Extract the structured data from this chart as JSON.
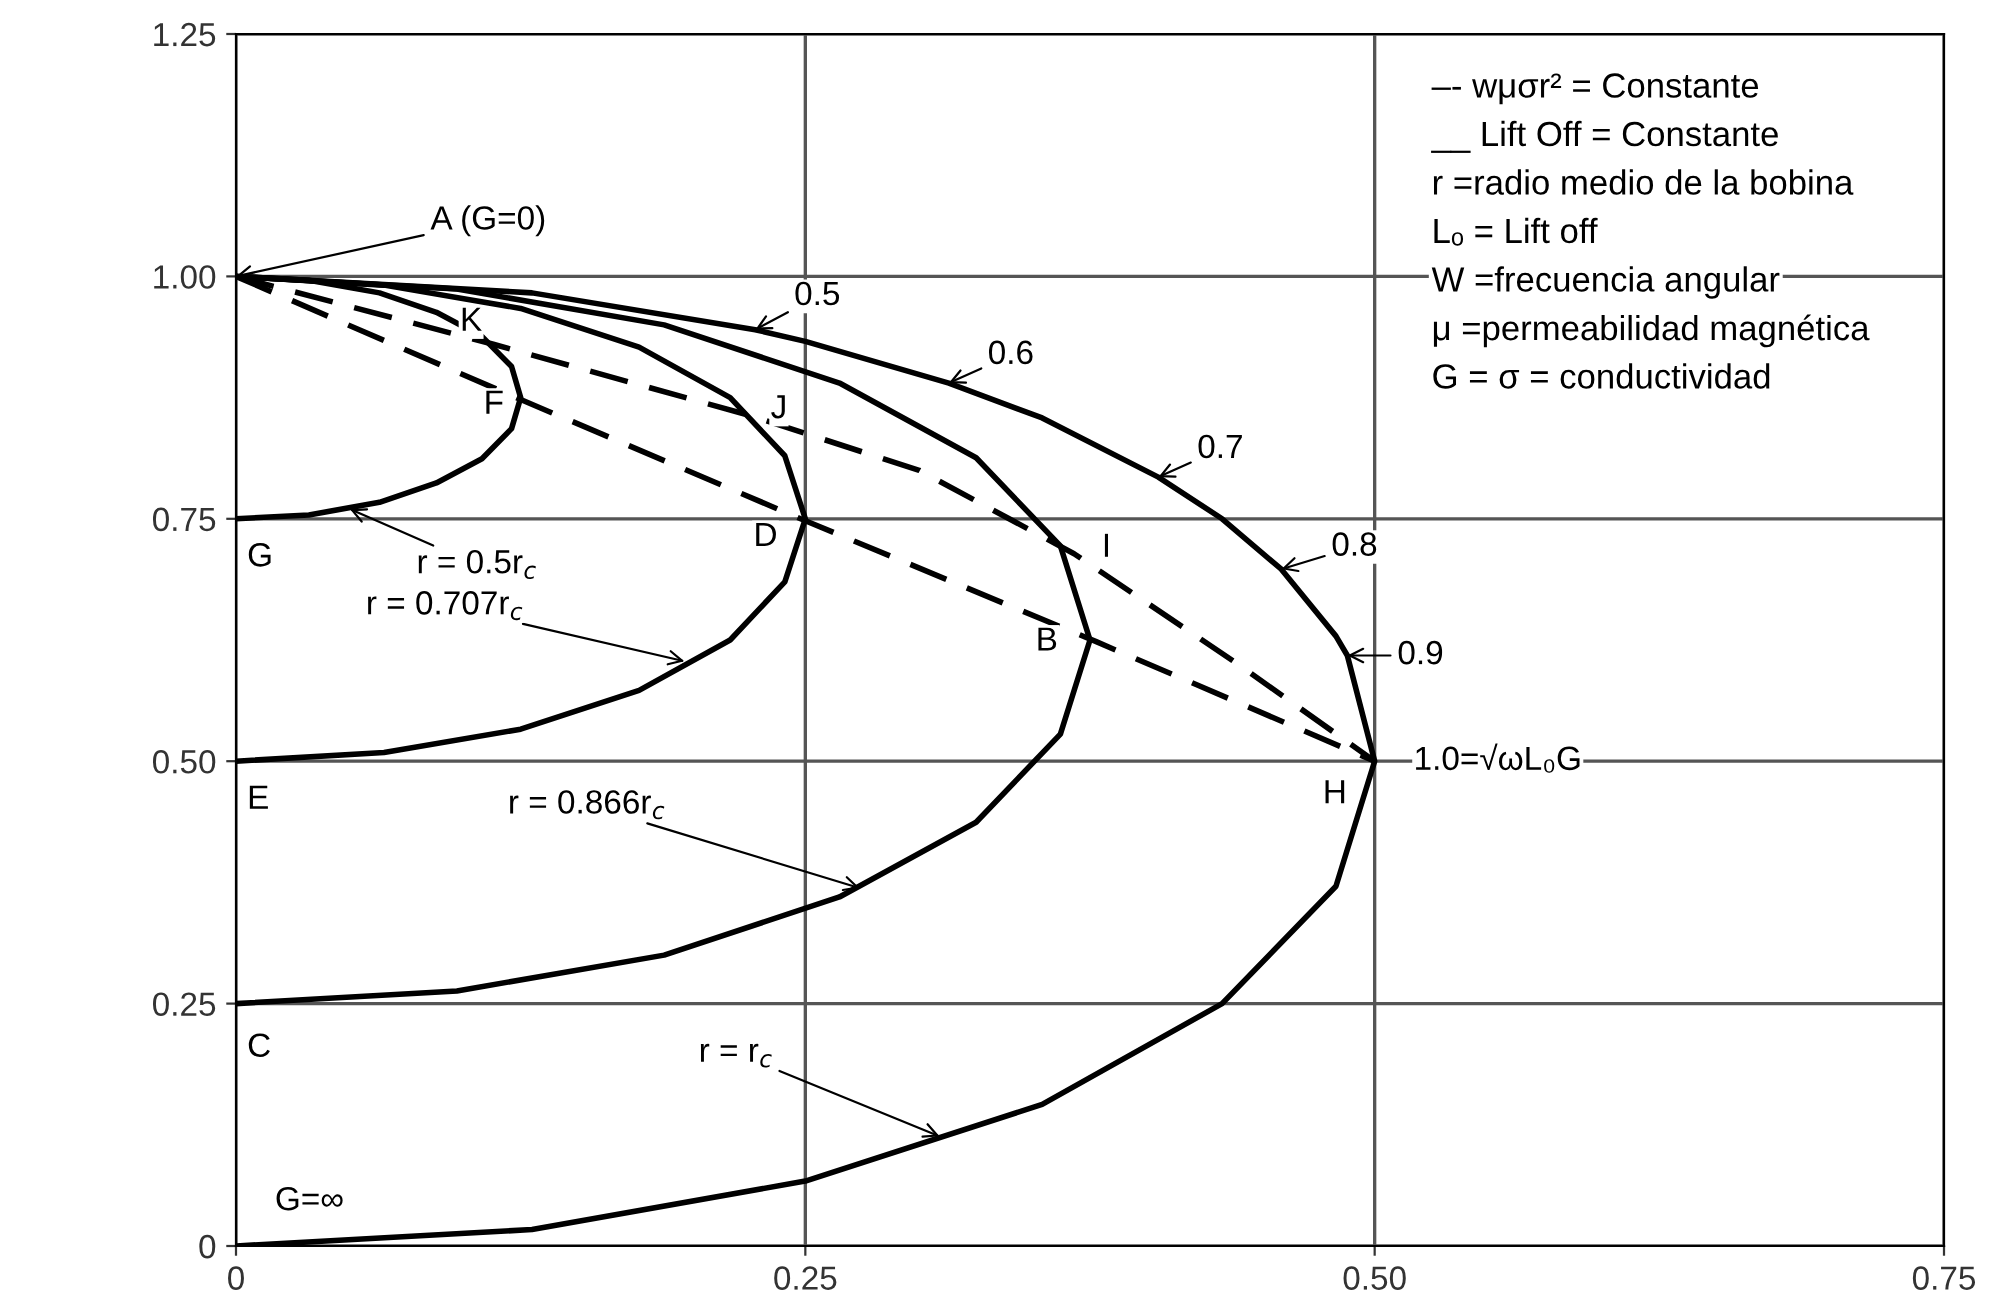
{
  "chart_data": {
    "type": "line",
    "xlim": [
      0,
      0.75
    ],
    "ylim": [
      0,
      1.25
    ],
    "xticks": [
      0,
      0.25,
      {
        "value": 0.5,
        "label": "0.50"
      },
      0.75
    ],
    "yticks": [
      0,
      0.25,
      {
        "value": 0.5,
        "label": "0.50"
      },
      0.75,
      {
        "value": 1,
        "label": "1.00"
      },
      1.25
    ],
    "grid": true,
    "marker": "none",
    "series": [
      {
        "color": "#000000",
        "line_style": "solid",
        "x": [
          0,
          0.032,
          0.063,
          0.088,
          0.108,
          0.121,
          0.125,
          0.121,
          0.108,
          0.088,
          0.063,
          0.032,
          0
        ],
        "values": [
          1,
          0.996,
          0.983,
          0.963,
          0.938,
          0.907,
          0.875,
          0.843,
          0.812,
          0.787,
          0.767,
          0.754,
          0.75
        ]
      },
      {
        "color": "#000000",
        "line_style": "solid",
        "x": [
          0,
          0.065,
          0.125,
          0.177,
          0.217,
          0.241,
          0.25,
          0.241,
          0.217,
          0.177,
          0.125,
          0.065,
          0
        ],
        "values": [
          1,
          0.991,
          0.967,
          0.927,
          0.875,
          0.815,
          0.75,
          0.685,
          0.625,
          0.573,
          0.533,
          0.509,
          0.5
        ]
      },
      {
        "color": "#000000",
        "line_style": "solid",
        "x": [
          0,
          0.097,
          0.188,
          0.265,
          0.325,
          0.362,
          0.375,
          0.362,
          0.325,
          0.265,
          0.188,
          0.097,
          0
        ],
        "values": [
          1,
          0.987,
          0.95,
          0.89,
          0.813,
          0.722,
          0.625,
          0.528,
          0.437,
          0.36,
          0.3,
          0.263,
          0.25
        ]
      },
      {
        "color": "#000000",
        "line_style": "solid",
        "x": [
          0,
          0.13,
          0.228,
          0.25,
          0.313,
          0.354,
          0.405,
          0.433,
          0.459,
          0.483,
          0.488,
          0.5,
          0.483,
          0.433,
          0.354,
          0.25,
          0.13,
          0
        ],
        "values": [
          1,
          0.983,
          0.945,
          0.933,
          0.89,
          0.854,
          0.793,
          0.75,
          0.698,
          0.629,
          0.609,
          0.5,
          0.371,
          0.25,
          0.146,
          0.067,
          0.017,
          0
        ]
      },
      {
        "color": "#000000",
        "line_style": "dashed",
        "x": [
          0,
          0.125,
          0.25,
          0.378,
          0.5
        ],
        "values": [
          1,
          0.873,
          0.748,
          0.623,
          0.5
        ]
      },
      {
        "color": "#000000",
        "line_style": "dashed",
        "x": [
          0,
          0.113,
          0.225,
          0.3,
          0.368,
          0.44,
          0.5
        ],
        "values": [
          1,
          0.93,
          0.857,
          0.8,
          0.714,
          0.6,
          0.5
        ]
      }
    ],
    "annotations": [
      {
        "text": "A (G=0)",
        "x": 0,
        "y": 1
      },
      {
        "text": "K",
        "x": 0.113,
        "y": 0.93
      },
      {
        "text": "F",
        "x": 0.125,
        "y": 0.873
      },
      {
        "text": "J",
        "x": 0.225,
        "y": 0.857
      },
      {
        "text": "D",
        "x": 0.25,
        "y": 0.748
      },
      {
        "text": "G",
        "x": 0,
        "y": 0.75
      },
      {
        "text": "E",
        "x": 0,
        "y": 0.5
      },
      {
        "text": "C",
        "x": 0,
        "y": 0.25
      },
      {
        "text": "I",
        "x": 0.368,
        "y": 0.714
      },
      {
        "text": "B",
        "x": 0.378,
        "y": 0.623
      },
      {
        "text": "H",
        "x": 0.5,
        "y": 0.5
      },
      {
        "text": "G=∞",
        "x": 0,
        "y": 0
      },
      {
        "text": "r = 0.5r$_{c}$",
        "x": 0.05,
        "y": 0.76
      },
      {
        "text": "r = 0.707r$_{c}$",
        "x": 0.197,
        "y": 0.603
      },
      {
        "text": "r = 0.866r$_{c}$",
        "x": 0.274,
        "y": 0.369
      },
      {
        "text": "r = r$_{c}$",
        "x": 0.309,
        "y": 0.113
      },
      {
        "text": "0.5",
        "x": 0.228,
        "y": 0.945
      },
      {
        "text": "0.6",
        "x": 0.313,
        "y": 0.89
      },
      {
        "text": "0.7",
        "x": 0.405,
        "y": 0.793
      },
      {
        "text": "0.8",
        "x": 0.459,
        "y": 0.698
      },
      {
        "text": "0.9",
        "x": 0.488,
        "y": 0.609
      },
      {
        "text": "1.0=√ωL₀G",
        "x": 0.5,
        "y": 0.5
      },
      "–- wμσr² = Constante",
      "__ Lift Off = Constante",
      "r =radio medio de la bobina",
      "Lₒ = Lift off",
      "W =frecuencia angular",
      "μ =permeabilidad magnética",
      "G = σ = conductividad"
    ]
  }
}
